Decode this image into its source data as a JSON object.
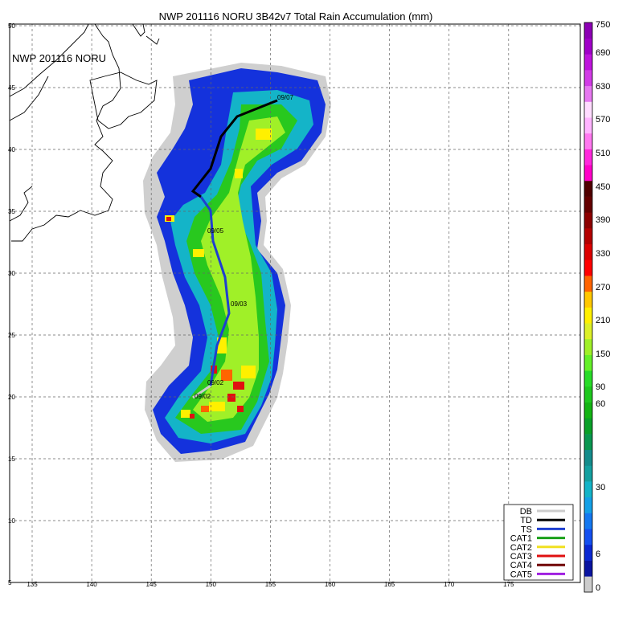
{
  "title": "NWP 201116 NORU 3B42v7 Total Rain Accumulation (mm)",
  "inset_label": "NWP 201116 NORU",
  "lon_ticks": [
    "135",
    "140",
    "145",
    "150",
    "155",
    "160",
    "165",
    "170",
    "175"
  ],
  "lat_ticks": [
    "50",
    "45",
    "40",
    "35",
    "30",
    "25",
    "20",
    "15",
    "10",
    "5"
  ],
  "track_labels": [
    "09/07",
    "09/05",
    "09/03",
    "09/02",
    "09/02"
  ],
  "legend": [
    {
      "name": "DB",
      "color": "#cccccc"
    },
    {
      "name": "TD",
      "color": "#000000"
    },
    {
      "name": "TS",
      "color": "#1f3fd0"
    },
    {
      "name": "CAT1",
      "color": "#1aa01a"
    },
    {
      "name": "CAT2",
      "color": "#f0e020"
    },
    {
      "name": "CAT3",
      "color": "#e01010"
    },
    {
      "name": "CAT4",
      "color": "#700000"
    },
    {
      "name": "CAT5",
      "color": "#a020e0"
    }
  ],
  "colorbar": {
    "labels": [
      "750",
      "690",
      "630",
      "570",
      "510",
      "450",
      "390",
      "330",
      "270",
      "210",
      "150",
      "90",
      "60",
      "30",
      "6",
      "0"
    ],
    "colors": [
      "#cccccc",
      "#0a14a0",
      "#0a28d2",
      "#1450f0",
      "#1478f0",
      "#14a0e6",
      "#14b4c8",
      "#14a0a0",
      "#148c8c",
      "#0a9650",
      "#0aa028",
      "#14b414",
      "#1ec81e",
      "#28dc28",
      "#64f028",
      "#a0f028",
      "#dcf028",
      "#fff000",
      "#ffc800",
      "#ff6400",
      "#ff0000",
      "#dc0000",
      "#b40000",
      "#8c0000",
      "#640000",
      "#500000",
      "#ff00c8",
      "#ff28dc",
      "#ff78f0",
      "#ffb4ff",
      "#ffdcff",
      "#e678f0",
      "#d23ce6",
      "#be14dc",
      "#a000c8",
      "#8c00b4"
    ]
  }
}
